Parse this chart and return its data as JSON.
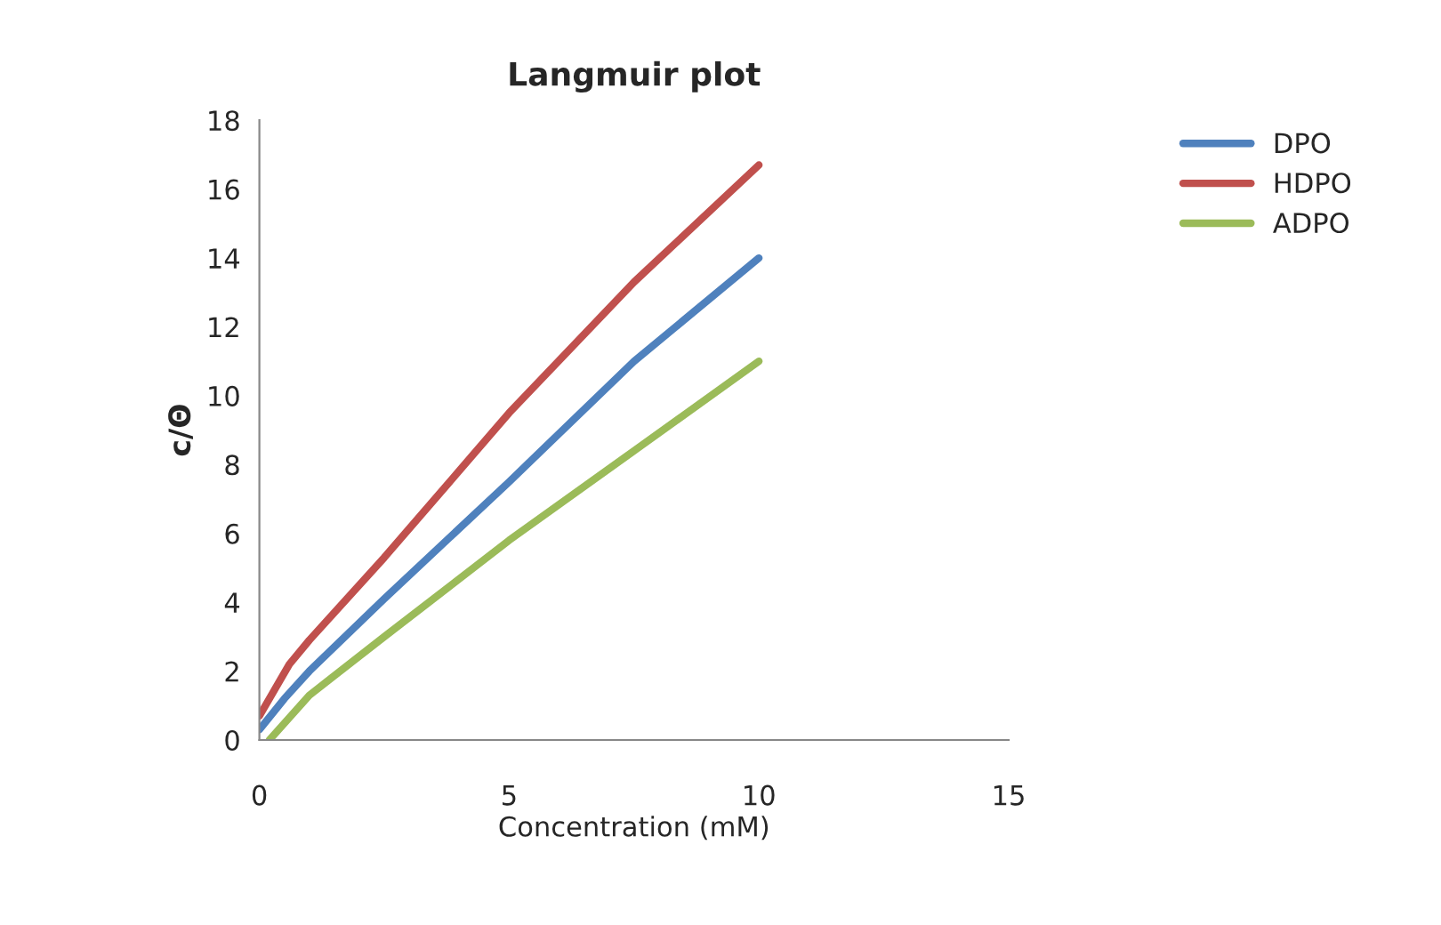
{
  "chart_data": {
    "type": "line",
    "title": "Langmuir plot",
    "xlabel": "Concentration (mM)",
    "ylabel": "c/Θ",
    "xlim": [
      0,
      15
    ],
    "xticks": [
      0,
      5,
      10,
      15
    ],
    "ylim": [
      0,
      18
    ],
    "yticks": [
      0,
      2,
      4,
      6,
      8,
      10,
      12,
      14,
      16,
      18
    ],
    "grid": false,
    "legend": "right",
    "marker": "none",
    "line_style": "solid",
    "series": [
      {
        "name": "DPO",
        "color": "#4f81bd",
        "x": [
          0,
          0.5,
          1,
          2.5,
          5,
          7.5,
          10
        ],
        "values": [
          0.3,
          1.2,
          2.0,
          4.1,
          7.5,
          11.0,
          14.0
        ]
      },
      {
        "name": "HDPO",
        "color": "#c0504d",
        "x": [
          0,
          0.6,
          1,
          2.5,
          5,
          7.5,
          10
        ],
        "values": [
          0.7,
          2.2,
          2.9,
          5.3,
          9.5,
          13.3,
          16.7
        ]
      },
      {
        "name": "ADPO",
        "color": "#9bbb59",
        "x": [
          0.2,
          1,
          2.5,
          5,
          7.5,
          10
        ],
        "values": [
          0,
          1.3,
          3.0,
          5.8,
          8.4,
          11.0
        ]
      }
    ]
  }
}
